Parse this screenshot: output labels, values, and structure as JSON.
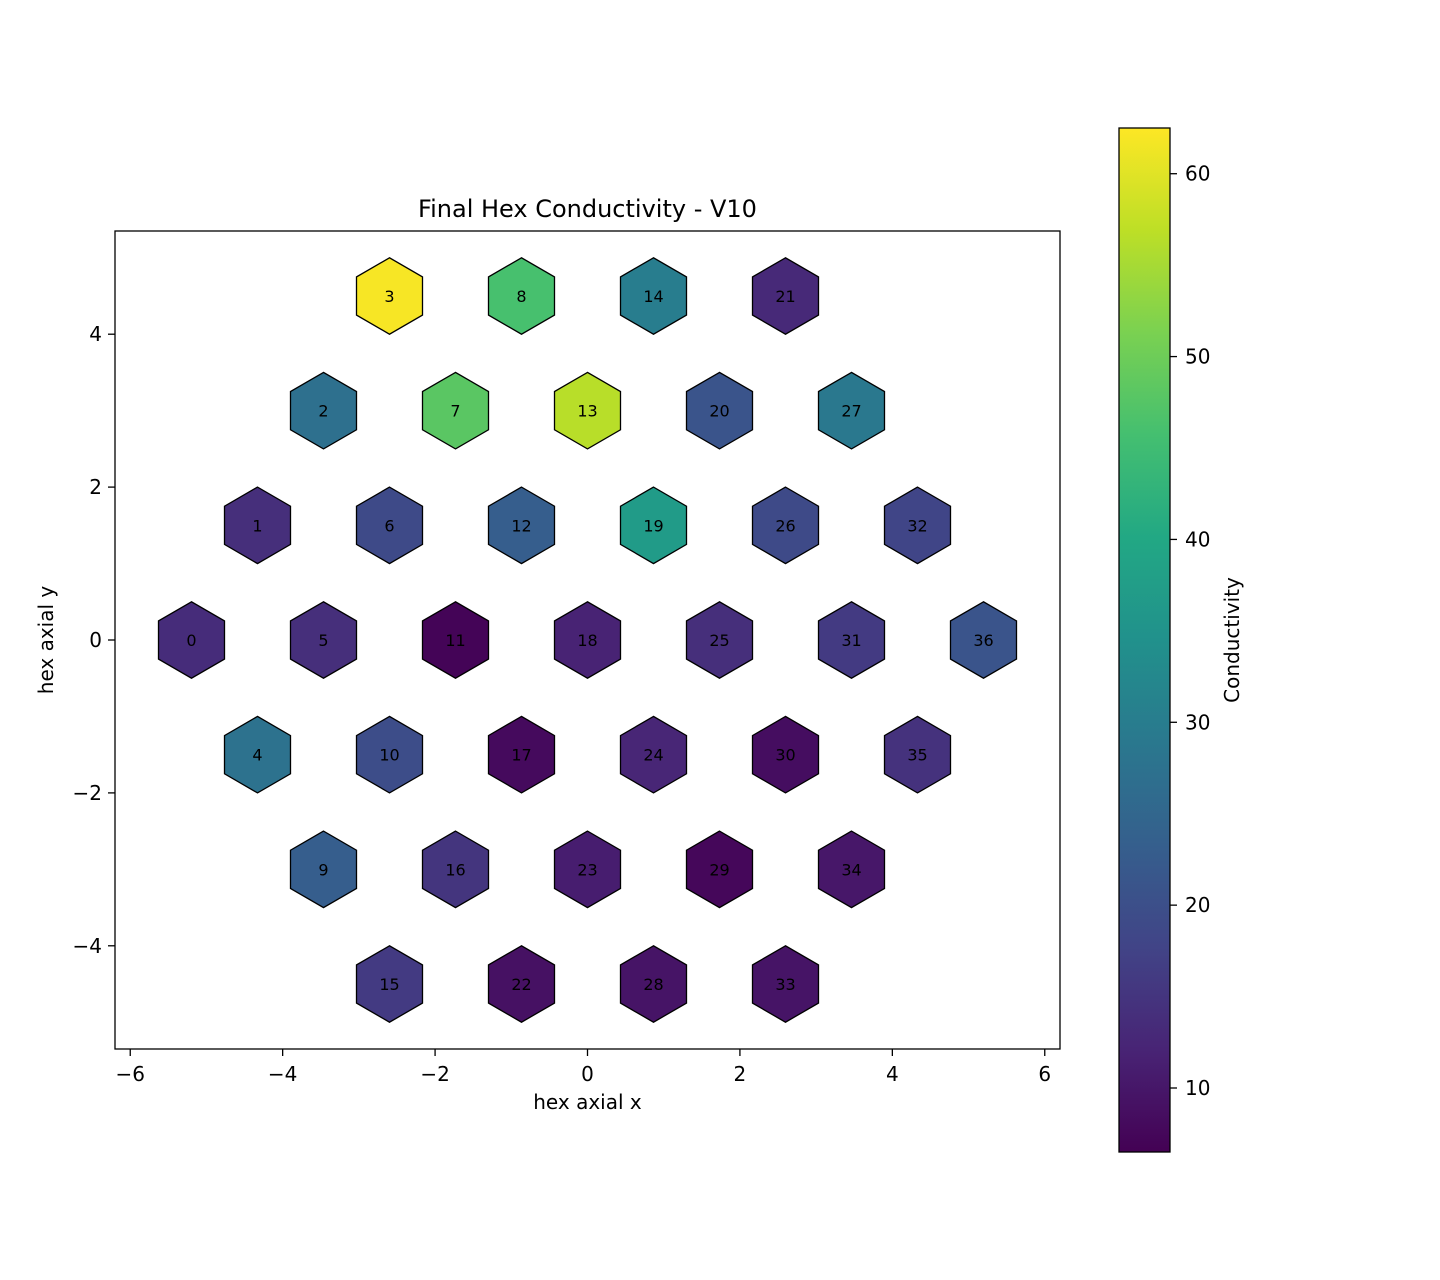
{
  "chart_data": {
    "type": "heatmap",
    "title": "Final Hex Conductivity - V10",
    "xlabel": "hex axial x",
    "ylabel": "hex axial y",
    "xlim": [
      -6.2,
      6.2
    ],
    "ylim": [
      -5.35,
      5.35
    ],
    "xticks": [
      -6,
      -4,
      -2,
      0,
      2,
      4,
      6
    ],
    "yticks": [
      -4,
      -2,
      0,
      2,
      4
    ],
    "xtick_labels": [
      "−6",
      "−4",
      "−2",
      "0",
      "2",
      "4",
      "6"
    ],
    "ytick_labels": [
      "−4",
      "−2",
      "0",
      "2",
      "4"
    ],
    "colormap": "viridis",
    "colorbar": {
      "label": "Conductivity",
      "range": [
        6.5,
        62.5
      ],
      "ticks": [
        10,
        20,
        30,
        40,
        50,
        60
      ],
      "tick_labels": [
        "10",
        "20",
        "30",
        "40",
        "50",
        "60"
      ]
    },
    "cells": [
      {
        "id": "0",
        "x": -5.196,
        "y": 0.0,
        "value": 13.5
      },
      {
        "id": "1",
        "x": -4.33,
        "y": 1.5,
        "value": 14.0
      },
      {
        "id": "2",
        "x": -3.464,
        "y": 3.0,
        "value": 27.0
      },
      {
        "id": "3",
        "x": -2.598,
        "y": 4.5,
        "value": 62.0
      },
      {
        "id": "4",
        "x": -4.33,
        "y": -1.5,
        "value": 27.5
      },
      {
        "id": "5",
        "x": -3.464,
        "y": 0.0,
        "value": 14.0
      },
      {
        "id": "6",
        "x": -2.598,
        "y": 1.5,
        "value": 19.0
      },
      {
        "id": "7",
        "x": -1.732,
        "y": 3.0,
        "value": 48.0
      },
      {
        "id": "8",
        "x": -0.866,
        "y": 4.5,
        "value": 46.0
      },
      {
        "id": "9",
        "x": -3.464,
        "y": -3.0,
        "value": 23.0
      },
      {
        "id": "10",
        "x": -2.598,
        "y": -1.5,
        "value": 19.5
      },
      {
        "id": "11",
        "x": -1.732,
        "y": 0.0,
        "value": 7.0
      },
      {
        "id": "12",
        "x": -0.866,
        "y": 1.5,
        "value": 23.0
      },
      {
        "id": "13",
        "x": 0.0,
        "y": 3.0,
        "value": 56.5
      },
      {
        "id": "14",
        "x": 0.866,
        "y": 4.5,
        "value": 30.0
      },
      {
        "id": "15",
        "x": -2.598,
        "y": -4.5,
        "value": 16.0
      },
      {
        "id": "16",
        "x": -1.732,
        "y": -3.0,
        "value": 15.0
      },
      {
        "id": "17",
        "x": -0.866,
        "y": -1.5,
        "value": 8.0
      },
      {
        "id": "18",
        "x": 0.0,
        "y": 0.0,
        "value": 12.0
      },
      {
        "id": "19",
        "x": 0.866,
        "y": 1.5,
        "value": 37.0
      },
      {
        "id": "20",
        "x": 1.732,
        "y": 3.0,
        "value": 21.0
      },
      {
        "id": "21",
        "x": 2.598,
        "y": 4.5,
        "value": 13.0
      },
      {
        "id": "22",
        "x": -0.866,
        "y": -4.5,
        "value": 9.0
      },
      {
        "id": "23",
        "x": 0.0,
        "y": -3.0,
        "value": 11.0
      },
      {
        "id": "24",
        "x": 0.866,
        "y": -1.5,
        "value": 12.5
      },
      {
        "id": "25",
        "x": 1.732,
        "y": 0.0,
        "value": 14.0
      },
      {
        "id": "26",
        "x": 2.598,
        "y": 1.5,
        "value": 19.0
      },
      {
        "id": "27",
        "x": 3.464,
        "y": 3.0,
        "value": 29.0
      },
      {
        "id": "28",
        "x": 0.866,
        "y": -4.5,
        "value": 9.5
      },
      {
        "id": "29",
        "x": 1.732,
        "y": -3.0,
        "value": 7.5
      },
      {
        "id": "30",
        "x": 2.598,
        "y": -1.5,
        "value": 8.5
      },
      {
        "id": "31",
        "x": 3.464,
        "y": 0.0,
        "value": 16.0
      },
      {
        "id": "32",
        "x": 4.33,
        "y": 1.5,
        "value": 18.0
      },
      {
        "id": "33",
        "x": 2.598,
        "y": -4.5,
        "value": 9.5
      },
      {
        "id": "34",
        "x": 3.464,
        "y": -3.0,
        "value": 10.0
      },
      {
        "id": "35",
        "x": 4.33,
        "y": -1.5,
        "value": 14.5
      },
      {
        "id": "36",
        "x": 5.196,
        "y": 0.0,
        "value": 21.0
      }
    ]
  }
}
